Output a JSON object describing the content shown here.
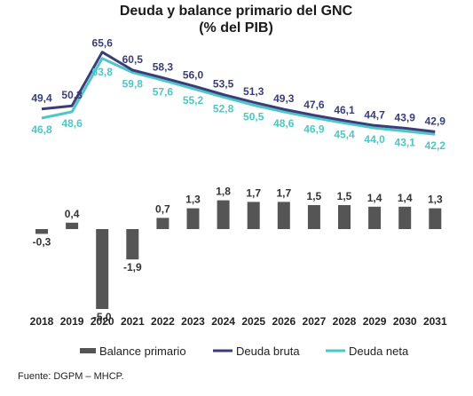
{
  "chart_data": {
    "type": "line+bar",
    "title": "Deuda y balance primario del GNC",
    "subtitle": "(% del PIB)",
    "categories": [
      "2018",
      "2019",
      "2020",
      "2021",
      "2022",
      "2023",
      "2024",
      "2025",
      "2026",
      "2027",
      "2028",
      "2029",
      "2030",
      "2031"
    ],
    "series": [
      {
        "name": "Deuda bruta",
        "type": "line",
        "color": "#3a3d7a",
        "values": [
          49.4,
          50.3,
          65.6,
          60.5,
          58.3,
          56.0,
          53.5,
          51.3,
          49.3,
          47.6,
          46.1,
          44.7,
          43.9,
          42.9
        ],
        "labels": [
          "49,4",
          "50,3",
          "65,6",
          "60,5",
          "58,3",
          "56,0",
          "53,5",
          "51,3",
          "49,3",
          "47,6",
          "46,1",
          "44,7",
          "43,9",
          "42,9"
        ]
      },
      {
        "name": "Deuda neta",
        "type": "line",
        "color": "#4ec6c6",
        "values": [
          46.8,
          48.6,
          63.8,
          59.8,
          57.6,
          55.2,
          52.8,
          50.5,
          48.6,
          46.9,
          45.4,
          44.0,
          43.1,
          42.2
        ],
        "labels": [
          "46,8",
          "48,6",
          "63,8",
          "59,8",
          "57,6",
          "55,2",
          "52,8",
          "50,5",
          "48,6",
          "46,9",
          "45,4",
          "44,0",
          "43,1",
          "42,2"
        ]
      },
      {
        "name": "Balance primario",
        "type": "bar",
        "color": "#555555",
        "values": [
          -0.3,
          0.4,
          -5.0,
          -1.9,
          0.7,
          1.3,
          1.8,
          1.7,
          1.7,
          1.5,
          1.5,
          1.4,
          1.4,
          1.3
        ],
        "labels": [
          "-0,3",
          "0,4",
          "-5,0",
          "-1,9",
          "0,7",
          "1,3",
          "1,8",
          "1,7",
          "1,7",
          "1,5",
          "1,5",
          "1,4",
          "1,4",
          "1,3"
        ]
      }
    ],
    "legend_position": "bottom",
    "grid": false
  },
  "source": "Fuente: DGPM – MHCP."
}
